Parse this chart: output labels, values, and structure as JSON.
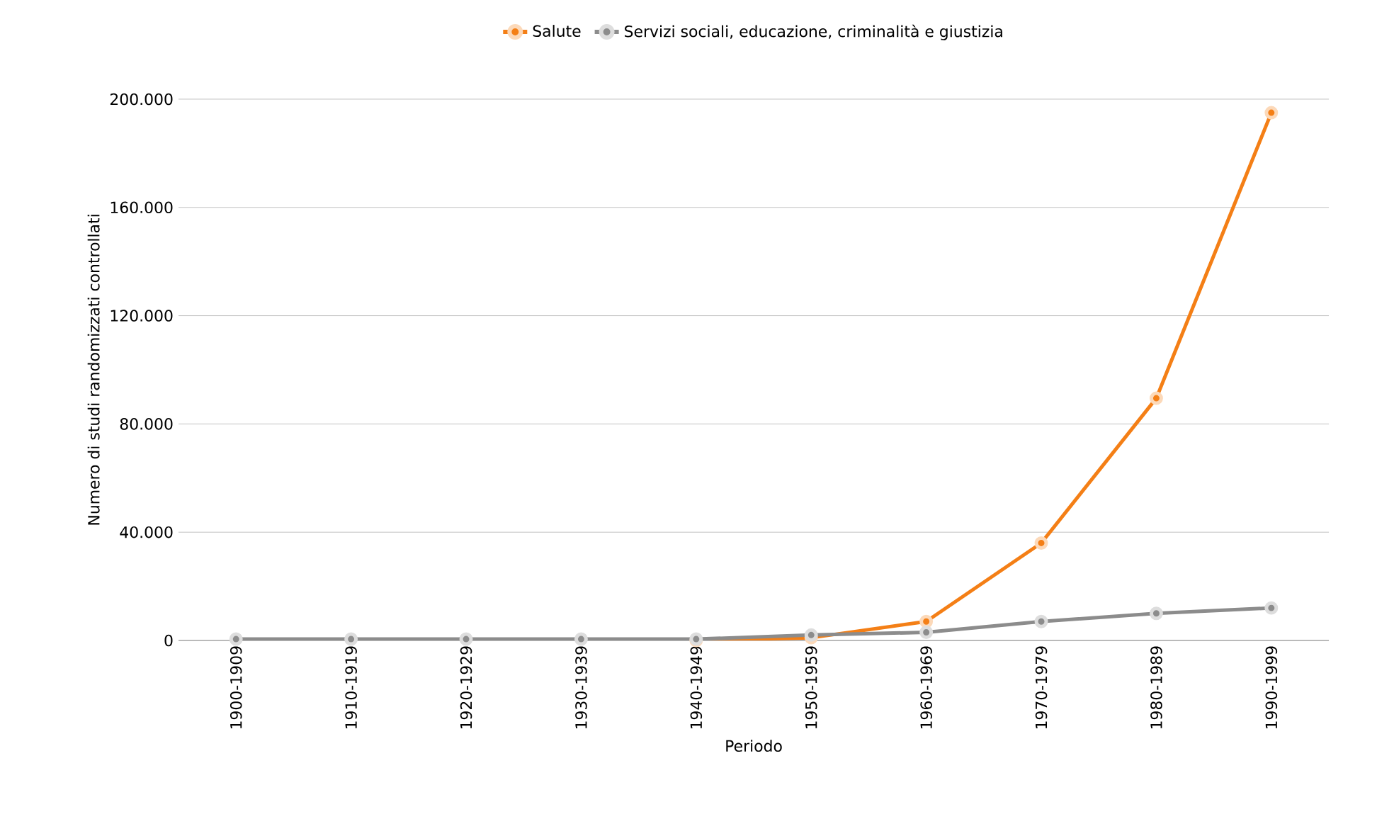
{
  "chart_data": {
    "type": "line",
    "xlabel": "Periodo",
    "ylabel": "Numero di studi randomizzati controllati",
    "categories": [
      "1900-1909",
      "1910-1919",
      "1920-1929",
      "1930-1939",
      "1940-1949",
      "1950-1959",
      "1960-1969",
      "1970-1979",
      "1980-1989",
      "1990-1999"
    ],
    "series": [
      {
        "name": "Salute",
        "color": "#f47f16",
        "values": [
          null,
          null,
          null,
          null,
          0,
          1000,
          7000,
          36000,
          89500,
          195000
        ]
      },
      {
        "name": "Servizi sociali, educazione, criminalità e giustizia",
        "color": "#8c8c8c",
        "values": [
          500,
          500,
          500,
          500,
          500,
          2000,
          3000,
          7000,
          10000,
          12000
        ]
      }
    ],
    "ylim": [
      0,
      200000
    ],
    "yticks": [
      {
        "value": 0,
        "label": "0"
      },
      {
        "value": 40000,
        "label": "40.000"
      },
      {
        "value": 80000,
        "label": "80.000"
      },
      {
        "value": 120000,
        "label": "120.000"
      },
      {
        "value": 160000,
        "label": "160.000"
      },
      {
        "value": 200000,
        "label": "200.000"
      }
    ],
    "grid": "y",
    "legend": "top",
    "marker": "circle",
    "line_style": "solid"
  }
}
